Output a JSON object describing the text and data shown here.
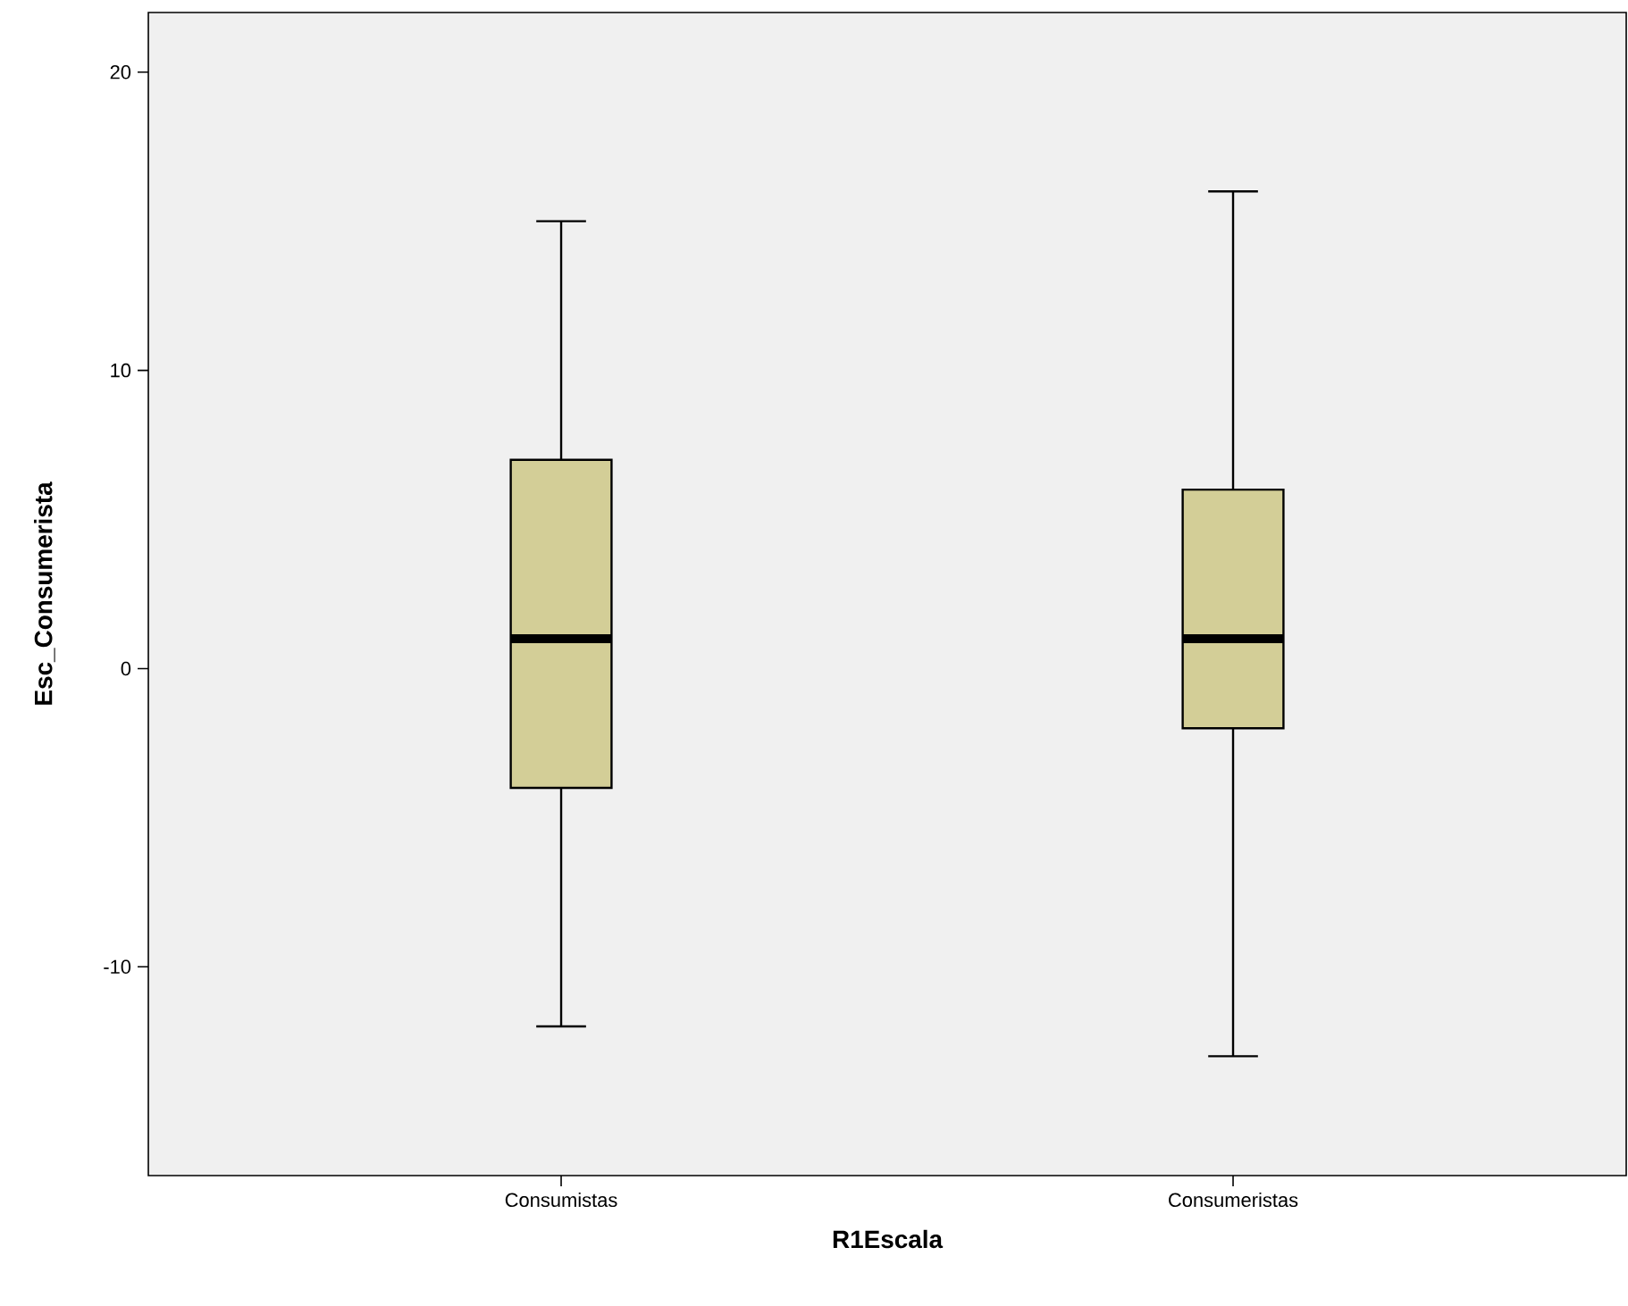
{
  "chart_data": {
    "type": "box",
    "xlabel": "R1Escala",
    "ylabel": "Esc_Consumerista",
    "categories": [
      "Consumistas",
      "Consumeristas"
    ],
    "boxes": [
      {
        "low": -12,
        "q1": -4,
        "median": 1,
        "q3": 7,
        "high": 15
      },
      {
        "low": -13,
        "q1": -2,
        "median": 1,
        "q3": 6,
        "high": 16
      }
    ],
    "color": "#d3ce97",
    "ylim": [
      -17,
      22
    ],
    "yticks": [
      -10,
      0,
      10,
      20
    ]
  }
}
